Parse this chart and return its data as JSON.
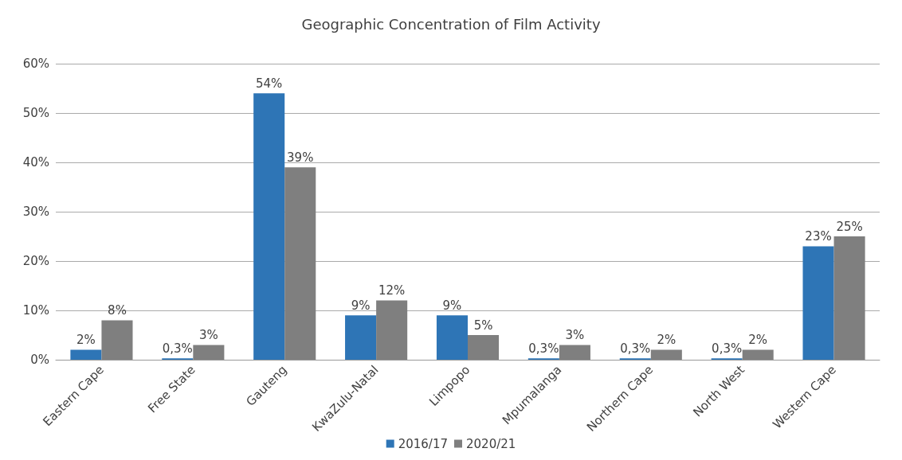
{
  "chart_data": {
    "type": "bar",
    "title": "Geographic Concentration of Film Activity",
    "categories": [
      "Eastern Cape",
      "Free State",
      "Gauteng",
      "KwaZulu-Natal",
      "Limpopo",
      "Mpumalanga",
      "Northern Cape",
      "North West",
      "Western Cape"
    ],
    "series": [
      {
        "name": "2016/17",
        "color": "#2e75b6",
        "values": [
          2,
          0.3,
          54,
          9,
          9,
          0.3,
          0.3,
          0.3,
          23
        ],
        "value_labels": [
          "2%",
          "0,3%",
          "54%",
          "9%",
          "9%",
          "0,3%",
          "0,3%",
          "0,3%",
          "23%"
        ]
      },
      {
        "name": "2020/21",
        "color": "#7f7f7f",
        "values": [
          8,
          3,
          39,
          12,
          5,
          3,
          2,
          2,
          25
        ],
        "value_labels": [
          "8%",
          "3%",
          "39%",
          "12%",
          "5%",
          "3%",
          "2%",
          "2%",
          "25%"
        ]
      }
    ],
    "ylim": [
      0,
      60
    ],
    "yticks": [
      {
        "value": 0,
        "label": "0%"
      },
      {
        "value": 10,
        "label": "10%"
      },
      {
        "value": 20,
        "label": "20%"
      },
      {
        "value": 30,
        "label": "30%"
      },
      {
        "value": 40,
        "label": "40%"
      },
      {
        "value": 50,
        "label": "50%"
      },
      {
        "value": 60,
        "label": "60%"
      }
    ],
    "grid": "y",
    "legend": "bottom"
  }
}
